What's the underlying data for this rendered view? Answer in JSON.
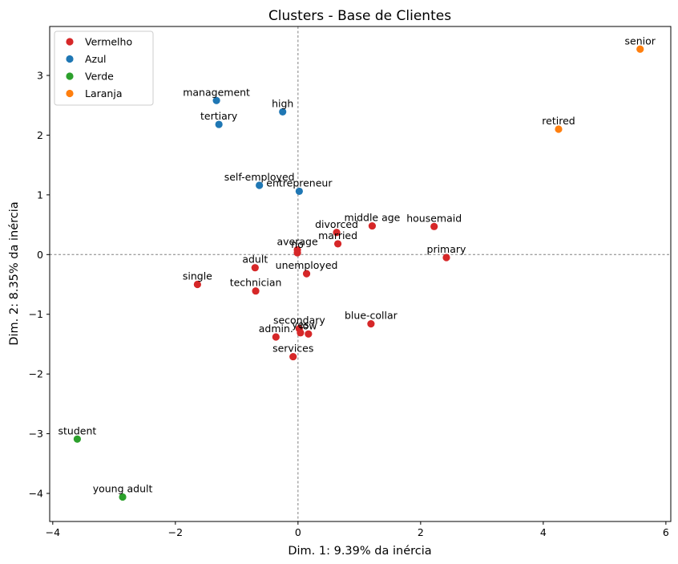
{
  "chart_data": {
    "type": "scatter",
    "title": "Clusters - Base de Clientes",
    "xlabel": "Dim. 1: 9.39% da inércia",
    "ylabel": "Dim. 2: 8.35% da inércia",
    "xlim": [
      -4.05,
      6.08
    ],
    "ylim": [
      -4.47,
      3.82
    ],
    "xticks": [
      -4,
      -2,
      0,
      2,
      4,
      6
    ],
    "xtick_labels": [
      "−4",
      "−2",
      "0",
      "2",
      "4",
      "6"
    ],
    "yticks": [
      -4,
      -3,
      -2,
      -1,
      0,
      1,
      2,
      3
    ],
    "ytick_labels": [
      "−4",
      "−3",
      "−2",
      "−1",
      "0",
      "1",
      "2",
      "3"
    ],
    "reference_lines": {
      "x": 0,
      "y": 0
    },
    "grid": false,
    "legend_position": "top-left",
    "series": [
      {
        "name": "Vermelho",
        "color": "#d62728",
        "points": [
          {
            "label": "divorced",
            "x": 0.63,
            "y": 0.37
          },
          {
            "label": "middle age",
            "x": 1.21,
            "y": 0.48
          },
          {
            "label": "housemaid",
            "x": 2.22,
            "y": 0.47
          },
          {
            "label": "married",
            "x": 0.65,
            "y": 0.18
          },
          {
            "label": "average",
            "x": -0.01,
            "y": 0.08
          },
          {
            "label": "no",
            "x": -0.01,
            "y": 0.03
          },
          {
            "label": "primary",
            "x": 2.42,
            "y": -0.05
          },
          {
            "label": "adult",
            "x": -0.7,
            "y": -0.22
          },
          {
            "label": "unemployed",
            "x": 0.14,
            "y": -0.32
          },
          {
            "label": "single",
            "x": -1.64,
            "y": -0.5
          },
          {
            "label": "technician",
            "x": -0.69,
            "y": -0.61
          },
          {
            "label": "blue-collar",
            "x": 1.19,
            "y": -1.16
          },
          {
            "label": "secondary",
            "x": 0.02,
            "y": -1.24
          },
          {
            "label": "yes",
            "x": 0.04,
            "y": -1.31
          },
          {
            "label": "low",
            "x": 0.17,
            "y": -1.33
          },
          {
            "label": "admin.",
            "x": -0.36,
            "y": -1.38
          },
          {
            "label": "services",
            "x": -0.08,
            "y": -1.71
          }
        ]
      },
      {
        "name": "Azul",
        "color": "#1f77b4",
        "points": [
          {
            "label": "management",
            "x": -1.33,
            "y": 2.58
          },
          {
            "label": "high",
            "x": -0.25,
            "y": 2.39
          },
          {
            "label": "tertiary",
            "x": -1.29,
            "y": 2.18
          },
          {
            "label": "self-employed",
            "x": -0.63,
            "y": 1.16
          },
          {
            "label": "entrepreneur",
            "x": 0.02,
            "y": 1.06
          }
        ]
      },
      {
        "name": "Verde",
        "color": "#2ca02c",
        "points": [
          {
            "label": "student",
            "x": -3.6,
            "y": -3.09
          },
          {
            "label": "young adult",
            "x": -2.86,
            "y": -4.06
          }
        ]
      },
      {
        "name": "Laranja",
        "color": "#ff7f0e",
        "points": [
          {
            "label": "senior",
            "x": 5.58,
            "y": 3.44
          },
          {
            "label": "retired",
            "x": 4.25,
            "y": 2.1
          }
        ]
      }
    ]
  }
}
